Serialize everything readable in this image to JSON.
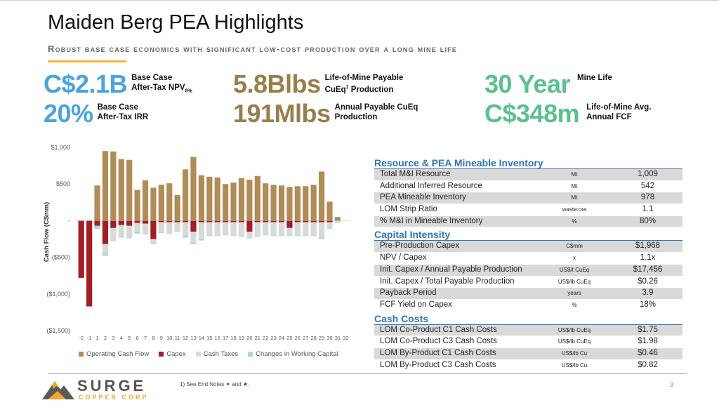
{
  "title": "Maiden Berg PEA Highlights",
  "subtitle": "Robust base case economics with significant low-cost production over a long mine life",
  "kpis": {
    "npv": {
      "value": "C$2.1B",
      "label1": "Base Case",
      "label2": "After-Tax NPV",
      "sub": "8%"
    },
    "irr": {
      "value": "20%",
      "label1": "Base Case",
      "label2": "After-Tax IRR"
    },
    "lom_prod": {
      "value": "5.8Blbs",
      "label1": "Life-of-Mine Payable",
      "label2": "CuEq",
      "sup": "1",
      "label3": " Production"
    },
    "annual_prod": {
      "value": "191Mlbs",
      "label1": "Annual Payable CuEq",
      "label2": "Production"
    },
    "mine_life": {
      "value": "30 Year",
      "label1": "Mine Life"
    },
    "fcf": {
      "value": "C$348m",
      "label1": "Life-of-Mine Avg.",
      "label2": "Annual FCF"
    }
  },
  "colors": {
    "blue": "#4da3df",
    "brown": "#9a7d4a",
    "green": "#5cc08f",
    "section": "#2e75b6"
  },
  "chart_data": {
    "type": "bar",
    "stacked": true,
    "ylabel": "Cash Flow (C$mm)",
    "ylim": [
      -1500,
      1000
    ],
    "yticks": [
      1000,
      500,
      0,
      -500,
      -1000,
      -1500
    ],
    "ytick_labels": [
      "$1,000",
      "$500",
      "-",
      "($500)",
      "($1,000)",
      "($1,500)"
    ],
    "grid": false,
    "legend_position": "bottom",
    "categories": [
      "-2",
      "-1",
      "1",
      "2",
      "3",
      "4",
      "5",
      "6",
      "7",
      "8",
      "9",
      "10",
      "11",
      "12",
      "13",
      "14",
      "15",
      "16",
      "17",
      "18",
      "19",
      "20",
      "21",
      "22",
      "23",
      "24",
      "25",
      "26",
      "27",
      "28",
      "29",
      "30",
      "31",
      "32"
    ],
    "series": [
      {
        "name": "Operating Cash Flow",
        "color": "#b08d57",
        "values": [
          0,
          0,
          480,
          950,
          945,
          840,
          830,
          420,
          550,
          450,
          490,
          510,
          350,
          700,
          870,
          620,
          600,
          590,
          500,
          520,
          580,
          560,
          610,
          510,
          490,
          480,
          460,
          470,
          470,
          490,
          670,
          260,
          50,
          0
        ]
      },
      {
        "name": "Capex",
        "color": "#a51c24",
        "values": [
          -780,
          -1170,
          -70,
          -320,
          -100,
          -60,
          -70,
          -30,
          -40,
          -250,
          -20,
          -20,
          -20,
          -20,
          -150,
          -20,
          -20,
          -20,
          -20,
          -20,
          -20,
          -150,
          -20,
          -20,
          -20,
          -20,
          -100,
          -20,
          -20,
          -20,
          -20,
          -20,
          0,
          0
        ]
      },
      {
        "name": "Cash Taxes",
        "color": "#d9d9d9",
        "values": [
          0,
          0,
          0,
          -120,
          -170,
          -160,
          -160,
          -120,
          -140,
          -60,
          -140,
          -150,
          -120,
          -180,
          -150,
          -230,
          -180,
          -180,
          -170,
          -180,
          -190,
          -80,
          -190,
          -170,
          -180,
          -180,
          -100,
          -180,
          -180,
          -180,
          -200,
          -80,
          -20,
          0
        ]
      },
      {
        "name": "Changes in Working Capital",
        "color": "#a8dcc9",
        "values": [
          0,
          0,
          -40,
          -40,
          -10,
          -10,
          -10,
          -30,
          -10,
          -10,
          -10,
          -10,
          -10,
          -30,
          -20,
          -20,
          -10,
          -10,
          -10,
          -10,
          -10,
          -10,
          -10,
          -10,
          -10,
          -10,
          -10,
          -10,
          -10,
          -10,
          -30,
          -10,
          -10,
          0
        ]
      }
    ]
  },
  "sections": [
    {
      "title": "Resource & PEA Mineable Inventory",
      "rows": [
        {
          "label": "Total M&I Resource",
          "unit": "Mt",
          "value": "1,009"
        },
        {
          "label": "Additional Inferred Resource",
          "unit": "Mt",
          "value": "542"
        },
        {
          "label": "PEA Mineable Inventory",
          "unit": "Mt",
          "value": "978"
        },
        {
          "label": "LOM Strip Ratio",
          "unit": "waste:ore",
          "value": "1.1"
        },
        {
          "label": "% M&I in Mineable Inventory",
          "unit": "%",
          "value": "80%"
        }
      ]
    },
    {
      "title": "Capital Intensity",
      "rows": [
        {
          "label": "Pre-Production Capex",
          "unit": "C$mm",
          "value": "$1,968"
        },
        {
          "label": "NPV / Capex",
          "unit": "x",
          "value": "1.1x"
        },
        {
          "label": "Init. Capex / Annual Payable Production",
          "unit": "US$/t CuEq",
          "value": "$17,456"
        },
        {
          "label": "Init. Capex / Total Payable Production",
          "unit": "US$/lb CuEq",
          "value": "$0.26"
        },
        {
          "label": "Payback Period",
          "unit": "years",
          "value": "3.9"
        },
        {
          "label": "FCF Yield on Capex",
          "unit": "%",
          "value": "18%"
        }
      ]
    },
    {
      "title": "Cash Costs",
      "rows": [
        {
          "label": "LOM Co-Product C1 Cash Costs",
          "unit": "US$/lb CuEq",
          "value": "$1.75"
        },
        {
          "label": "LOM Co-Product C3 Cash Costs",
          "unit": "US$/lb CuEq",
          "value": "$1.98"
        },
        {
          "label": "LOM By-Product C1 Cash Costs",
          "unit": "US$/lb Cu",
          "value": "$0.46"
        },
        {
          "label": "LOM By-Product C3 Cash Costs",
          "unit": "US$/lb Cu",
          "value": "$0.82"
        }
      ]
    }
  ],
  "footer": {
    "logo_name": "SURGE",
    "logo_sub": "COPPER CORP",
    "endnote": "1)   See End Notes ✦ and ★.",
    "page_number": "3"
  }
}
